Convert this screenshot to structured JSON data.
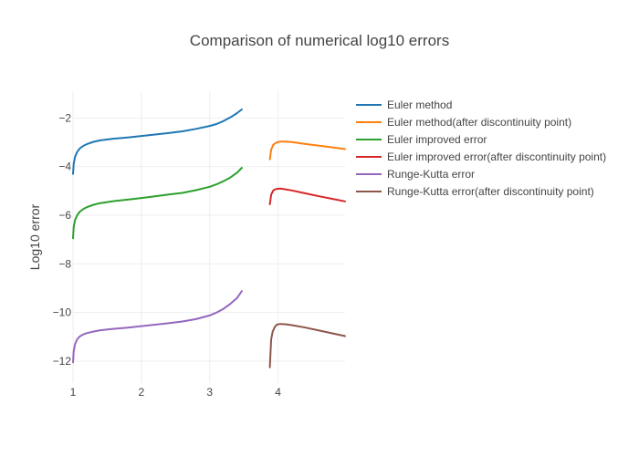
{
  "chart_data": {
    "type": "line",
    "title": "Comparison of numerical log10 errors",
    "xlabel": "",
    "ylabel": "Log10 error",
    "xlim": [
      1,
      4.98
    ],
    "ylim": [
      -12.9,
      -0.9
    ],
    "x_ticks": [
      1,
      2,
      3,
      4
    ],
    "y_ticks": [
      -12,
      -10,
      -8,
      -6,
      -4,
      -2
    ],
    "y_tick_labels": [
      "−12",
      "−10",
      "−8",
      "−6",
      "−4",
      "−2"
    ],
    "grid": true,
    "legend_position": "right",
    "series": [
      {
        "name": "Euler method",
        "color": "#1f77b4",
        "x": [
          1.0,
          1.01,
          1.03,
          1.06,
          1.1,
          1.15,
          1.2,
          1.3,
          1.4,
          1.6,
          1.8,
          2.0,
          2.2,
          2.4,
          2.6,
          2.8,
          3.0,
          3.1,
          3.2,
          3.3,
          3.4,
          3.47
        ],
        "y": [
          -4.3,
          -3.9,
          -3.6,
          -3.4,
          -3.25,
          -3.15,
          -3.08,
          -2.98,
          -2.92,
          -2.85,
          -2.8,
          -2.74,
          -2.68,
          -2.62,
          -2.55,
          -2.45,
          -2.33,
          -2.25,
          -2.13,
          -1.98,
          -1.8,
          -1.65
        ]
      },
      {
        "name": "Euler method(after discontinuity point)",
        "color": "#ff7f0e",
        "x": [
          3.88,
          3.9,
          3.93,
          3.97,
          4.03,
          4.1,
          4.2,
          4.4,
          4.6,
          4.8,
          4.98
        ],
        "y": [
          -3.7,
          -3.3,
          -3.1,
          -3.02,
          -2.97,
          -2.97,
          -2.99,
          -3.07,
          -3.14,
          -3.21,
          -3.28
        ]
      },
      {
        "name": "Euler improved error",
        "color": "#2ca02c",
        "x": [
          1.0,
          1.01,
          1.03,
          1.06,
          1.1,
          1.15,
          1.2,
          1.3,
          1.4,
          1.6,
          1.8,
          2.0,
          2.2,
          2.4,
          2.6,
          2.8,
          3.0,
          3.1,
          3.2,
          3.3,
          3.4,
          3.47
        ],
        "y": [
          -6.95,
          -6.5,
          -6.2,
          -6.0,
          -5.85,
          -5.75,
          -5.67,
          -5.57,
          -5.5,
          -5.42,
          -5.36,
          -5.29,
          -5.22,
          -5.15,
          -5.08,
          -4.97,
          -4.83,
          -4.73,
          -4.6,
          -4.45,
          -4.25,
          -4.05
        ]
      },
      {
        "name": "Euler improved error(after discontinuity point)",
        "color": "#d62728",
        "x": [
          3.88,
          3.9,
          3.93,
          3.97,
          4.03,
          4.1,
          4.2,
          4.4,
          4.6,
          4.8,
          4.98
        ],
        "y": [
          -5.55,
          -5.15,
          -4.98,
          -4.92,
          -4.9,
          -4.93,
          -4.98,
          -5.1,
          -5.22,
          -5.33,
          -5.43
        ]
      },
      {
        "name": "Runge-Kutta error",
        "color": "#9467bd",
        "x": [
          1.0,
          1.01,
          1.03,
          1.06,
          1.1,
          1.15,
          1.2,
          1.3,
          1.4,
          1.6,
          1.8,
          2.0,
          2.2,
          2.4,
          2.6,
          2.8,
          3.0,
          3.1,
          3.2,
          3.3,
          3.4,
          3.47
        ],
        "y": [
          -12.05,
          -11.6,
          -11.3,
          -11.1,
          -10.98,
          -10.9,
          -10.85,
          -10.78,
          -10.73,
          -10.67,
          -10.62,
          -10.56,
          -10.5,
          -10.44,
          -10.37,
          -10.27,
          -10.12,
          -10.0,
          -9.85,
          -9.65,
          -9.4,
          -9.12
        ]
      },
      {
        "name": "Runge-Kutta error(after discontinuity point)",
        "color": "#8c564b",
        "x": [
          3.88,
          3.89,
          3.9,
          3.92,
          3.95,
          3.98,
          4.03,
          4.1,
          4.2,
          4.4,
          4.6,
          4.8,
          4.98
        ],
        "y": [
          -12.25,
          -11.6,
          -11.1,
          -10.8,
          -10.6,
          -10.5,
          -10.47,
          -10.48,
          -10.52,
          -10.62,
          -10.74,
          -10.86,
          -10.97
        ]
      }
    ]
  }
}
